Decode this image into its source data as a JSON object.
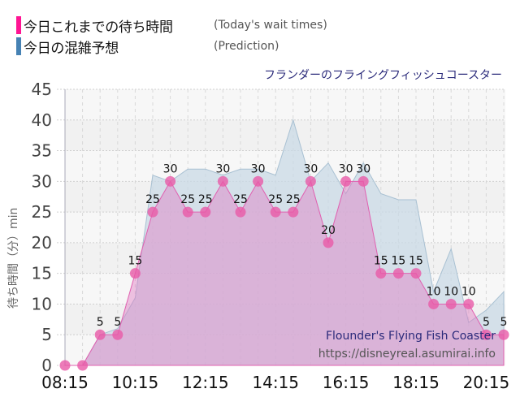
{
  "legend": {
    "items": [
      {
        "label": "今日これまでの待ち時間",
        "label_en": "(Today's wait times)",
        "color": "#ff1493"
      },
      {
        "label": "今日の混雑予想",
        "label_en": "(Prediction)",
        "color": "#4682b4"
      }
    ]
  },
  "header": {
    "title": "フランダーのフライングフィッシュコースター"
  },
  "watermark": {
    "name": "Flounder's Flying Fish Coaster",
    "url": "https://disneyreal.asumirai.info"
  },
  "chart_data": {
    "type": "area",
    "title": "フランダーのフライングフィッシュコースター",
    "xlabel": "",
    "ylabel": "待ち時間（分）min",
    "ylim": [
      0,
      45
    ],
    "yticks": [
      0,
      5,
      10,
      15,
      20,
      25,
      30,
      35,
      40,
      45
    ],
    "xtick_labels": [
      "08:15",
      "10:15",
      "12:15",
      "14:15",
      "16:15",
      "18:15",
      "20:15"
    ],
    "grid": true,
    "x": [
      "08:15",
      "08:45",
      "09:15",
      "09:45",
      "10:15",
      "10:45",
      "11:15",
      "11:45",
      "12:15",
      "12:45",
      "13:15",
      "13:45",
      "14:15",
      "14:45",
      "15:15",
      "15:45",
      "16:15",
      "16:45",
      "17:15",
      "17:45",
      "18:15",
      "18:45",
      "19:15",
      "19:45",
      "20:15",
      "20:45"
    ],
    "series": [
      {
        "name": "今日これまでの待ち時間 (Today's wait times)",
        "color": "#e85aa8",
        "values": [
          0,
          0,
          5,
          5,
          15,
          25,
          30,
          25,
          25,
          30,
          25,
          30,
          25,
          25,
          30,
          20,
          30,
          30,
          15,
          15,
          15,
          10,
          10,
          10,
          5,
          5
        ]
      },
      {
        "name": "今日の混雑予想 (Prediction)",
        "color": "#9bb8cc",
        "values": [
          null,
          0,
          5,
          6,
          11,
          31,
          30,
          32,
          32,
          31,
          32,
          32,
          31,
          40,
          30,
          33,
          28,
          33,
          28,
          27,
          27,
          12,
          19,
          7,
          9,
          12
        ]
      }
    ]
  }
}
